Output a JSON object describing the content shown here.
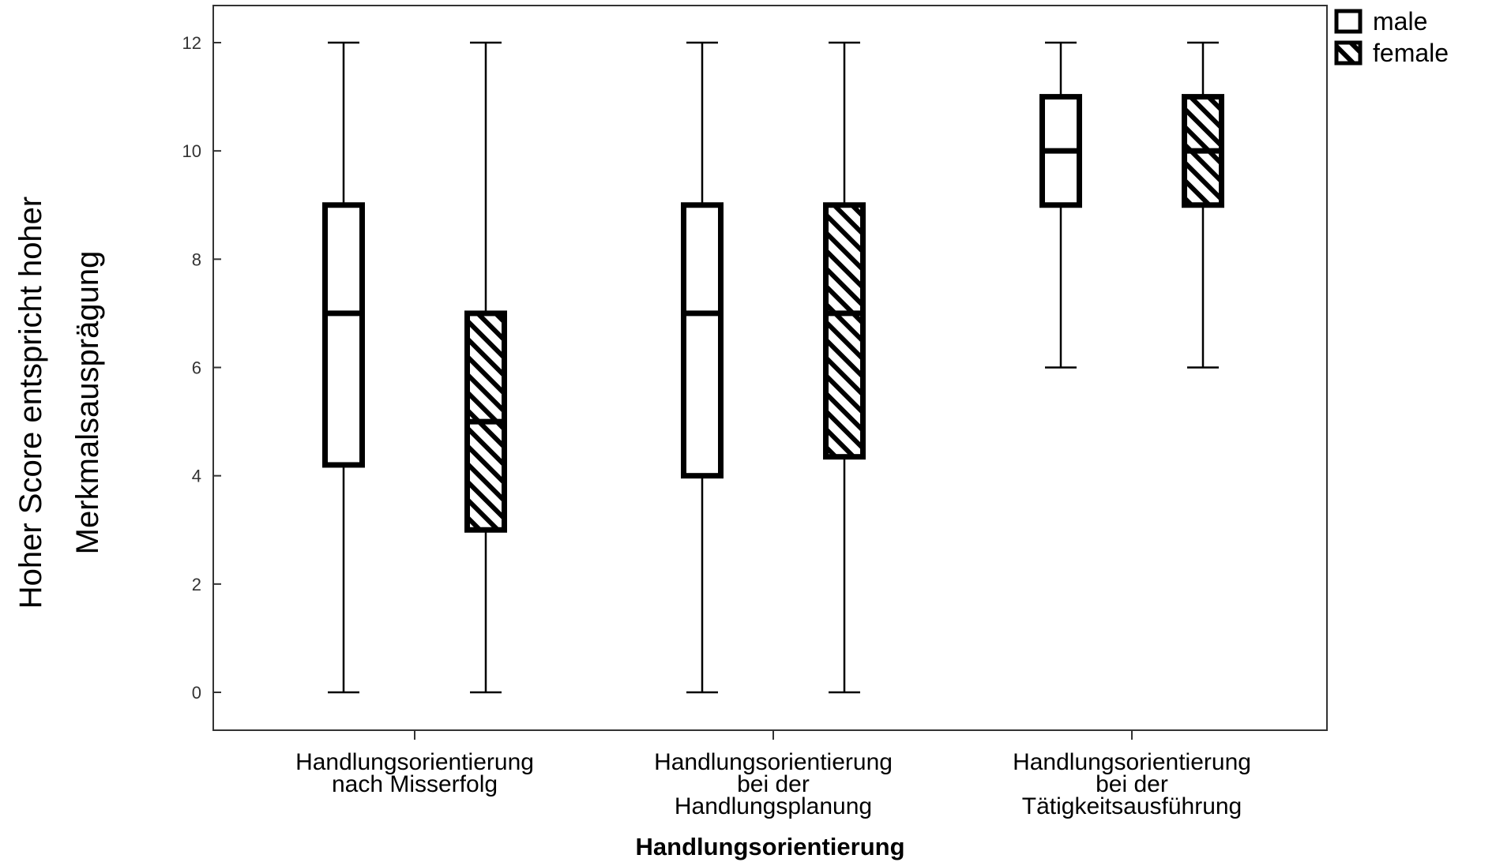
{
  "chart_data": {
    "type": "boxplot",
    "title": "",
    "xlabel": "Handlungsorientierung",
    "ylabel_lines": [
      "Hoher Score entspricht hoher",
      "Merkmalsausprägung"
    ],
    "ylim": [
      -0.6,
      12.7
    ],
    "yticks": [
      0,
      2,
      4,
      6,
      8,
      10,
      12
    ],
    "grid": false,
    "legend_position": "top-right",
    "categories": [
      {
        "lines": [
          "Handlungsorientierung",
          "nach Misserfolg"
        ]
      },
      {
        "lines": [
          "Handlungsorientierung",
          "bei der",
          "Handlungsplanung"
        ]
      },
      {
        "lines": [
          "Handlungsorientierung",
          "bei der",
          "Tätigkeitsausführung"
        ]
      }
    ],
    "series": [
      {
        "name": "male",
        "pattern": "none",
        "boxes": [
          {
            "min": 0,
            "q1": 4.2,
            "median": 7,
            "q3": 9,
            "max": 12
          },
          {
            "min": 0,
            "q1": 4,
            "median": 7,
            "q3": 9,
            "max": 12
          },
          {
            "min": 6,
            "q1": 9,
            "median": 10,
            "q3": 11,
            "max": 12
          }
        ]
      },
      {
        "name": "female",
        "pattern": "hatch",
        "boxes": [
          {
            "min": 0,
            "q1": 3,
            "median": 5,
            "q3": 7,
            "max": 12
          },
          {
            "min": 0,
            "q1": 4.35,
            "median": 7,
            "q3": 9,
            "max": 12
          },
          {
            "min": 6,
            "q1": 9,
            "median": 10,
            "q3": 11,
            "max": 12
          }
        ]
      }
    ],
    "colors": {
      "stroke": "#000000",
      "axis": "#333333",
      "tick_text": "#333333",
      "label_text": "#000000",
      "box_fill": "#ffffff",
      "hatch": "#000000"
    }
  }
}
